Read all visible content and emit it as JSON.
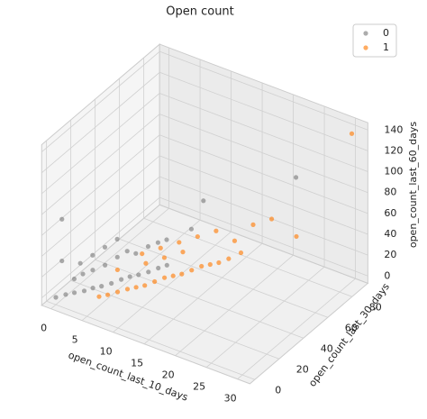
{
  "chart_data": {
    "type": "scatter3d",
    "title": "Open count",
    "xlabel": "open_count_last_10_days",
    "ylabel": "open_count_last_30_days",
    "zlabel": "open_count_last_60_days",
    "xlim": [
      -1.5,
      32
    ],
    "ylim": [
      -4,
      93
    ],
    "zlim": [
      -7,
      147
    ],
    "xticks": [
      0,
      5,
      10,
      15,
      20,
      25,
      30
    ],
    "yticks": [
      0,
      20,
      40,
      60,
      80
    ],
    "zticks": [
      0,
      20,
      40,
      60,
      80,
      100,
      120,
      140
    ],
    "grid": true,
    "legend": "upper right",
    "series": [
      {
        "name": "0",
        "color": "#808080",
        "x": [
          0,
          1,
          2,
          3,
          4,
          5,
          6,
          7,
          8,
          9,
          10,
          11,
          12,
          1,
          2,
          3,
          4,
          5,
          6,
          7,
          8,
          9,
          10,
          0,
          1,
          2,
          3,
          4,
          13,
          22,
          0,
          12
        ],
        "y": [
          0,
          3,
          5,
          8,
          10,
          12,
          15,
          18,
          20,
          22,
          25,
          28,
          30,
          10,
          12,
          15,
          20,
          25,
          28,
          30,
          35,
          38,
          40,
          5,
          15,
          20,
          25,
          30,
          45,
          85,
          5,
          60
        ],
        "z": [
          0,
          2,
          4,
          5,
          8,
          10,
          12,
          15,
          18,
          20,
          22,
          25,
          28,
          10,
          15,
          18,
          20,
          25,
          30,
          28,
          32,
          35,
          38,
          30,
          20,
          25,
          30,
          35,
          50,
          80,
          70,
          60
        ]
      },
      {
        "name": "1",
        "color": "#ff7f0e",
        "x": [
          5,
          6,
          7,
          8,
          9,
          10,
          11,
          12,
          13,
          14,
          15,
          16,
          17,
          18,
          19,
          20,
          8,
          10,
          12,
          14,
          16,
          18,
          20,
          22,
          6,
          9,
          11,
          13,
          25,
          30
        ],
        "y": [
          10,
          12,
          15,
          18,
          20,
          22,
          25,
          28,
          30,
          32,
          35,
          38,
          40,
          42,
          45,
          50,
          30,
          35,
          40,
          45,
          50,
          55,
          60,
          65,
          20,
          28,
          33,
          38,
          70,
          90
        ],
        "z": [
          2,
          4,
          6,
          8,
          10,
          12,
          15,
          18,
          20,
          22,
          25,
          28,
          30,
          32,
          35,
          38,
          30,
          35,
          40,
          45,
          50,
          40,
          55,
          60,
          20,
          25,
          30,
          35,
          45,
          135
        ]
      }
    ]
  }
}
